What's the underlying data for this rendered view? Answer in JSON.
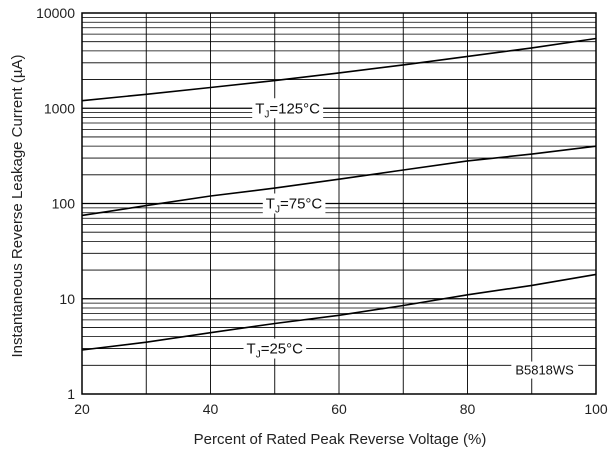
{
  "chart_data": {
    "type": "line",
    "title": "",
    "xlabel": "Percent of Rated Peak Reverse Voltage (%)",
    "ylabel": "Instantaneous Reverse Leakage Current (µA)",
    "xlim": [
      20,
      100
    ],
    "ylim": [
      1,
      10000
    ],
    "yscale": "log",
    "grid": true,
    "x_ticks": [
      "20",
      "40",
      "60",
      "80",
      "100"
    ],
    "y_ticks": [
      "1",
      "10",
      "100",
      "1000",
      "10000"
    ],
    "part_number": "B5818WS",
    "series": [
      {
        "label": {
          "prefix": "T",
          "sub": "J",
          "suffix": "=125°C"
        },
        "x": [
          20,
          30,
          40,
          50,
          60,
          70,
          80,
          90,
          100
        ],
        "y": [
          1200,
          1400,
          1650,
          1950,
          2350,
          2850,
          3500,
          4300,
          5400
        ]
      },
      {
        "label": {
          "prefix": "T",
          "sub": "J",
          "suffix": "=75°C"
        },
        "x": [
          20,
          30,
          40,
          50,
          60,
          70,
          80,
          90,
          100
        ],
        "y": [
          75,
          95,
          120,
          145,
          180,
          225,
          280,
          330,
          400
        ]
      },
      {
        "label": {
          "prefix": "T",
          "sub": "J",
          "suffix": "=25°C"
        },
        "x": [
          20,
          30,
          40,
          50,
          60,
          70,
          80,
          90,
          100
        ],
        "y": [
          2.9,
          3.5,
          4.4,
          5.5,
          6.7,
          8.5,
          11,
          13.8,
          18
        ]
      }
    ]
  }
}
